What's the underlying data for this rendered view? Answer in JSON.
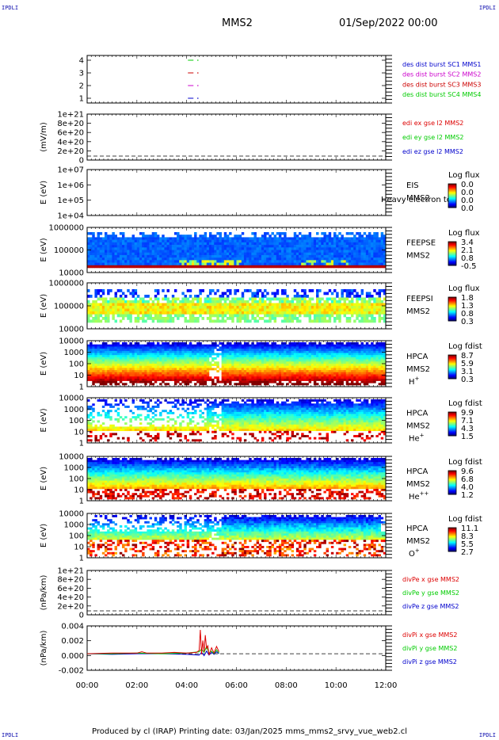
{
  "header": {
    "corner_left_top": "IPDLI",
    "corner_right_top": "IPDLI",
    "corner_left_bottom": "IPDLI",
    "corner_right_bottom": "IPDLI",
    "spacecraft": "MMS2",
    "datetime": "01/Sep/2022 00:00"
  },
  "footer": {
    "text": "Produced by cl (IRAP)   Printing date: 03/Jan/2025   mms_mms2_srvy_vue_web2.cl"
  },
  "colors": {
    "mms1": "#0000cc",
    "mms2": "#cc00cc",
    "mms3": "#cc0000",
    "mms4": "#00cc00",
    "x_comp": "#dd0000",
    "y_comp": "#00cc00",
    "z_comp": "#0000cc"
  },
  "chart_data": [
    {
      "id": "burst",
      "type": "scatter",
      "ylabel": "",
      "yticks": [
        "4",
        "3",
        "2",
        "1"
      ],
      "ylim": [
        0.5,
        4.5
      ],
      "series": [
        {
          "name": "des dist burst SC1 MMS1",
          "color": "#0000cc",
          "y": 1,
          "x": [
            4.05,
            4.45
          ]
        },
        {
          "name": "des dist burst SC2 MMS2",
          "color": "#cc00cc",
          "y": 2,
          "x": [
            4.05,
            4.45
          ]
        },
        {
          "name": "des dist burst SC3 MMS3",
          "color": "#cc0000",
          "y": 3,
          "x": [
            4.05,
            4.45
          ]
        },
        {
          "name": "des dist burst SC4 MMS4",
          "color": "#00cc00",
          "y": 4,
          "x": [
            4.05,
            4.45
          ]
        }
      ]
    },
    {
      "id": "edi",
      "type": "line",
      "ylabel": "(mV/m)",
      "yticks": [
        "1e+21",
        "8e+20",
        "6e+20",
        "4e+20",
        "2e+20",
        "0"
      ],
      "series": [
        {
          "name": "edi ex gse l2 MMS2",
          "color": "#dd0000"
        },
        {
          "name": "edi ey gse l2 MMS2",
          "color": "#00cc00"
        },
        {
          "name": "edi ez gse l2 MMS2",
          "color": "#0000cc"
        }
      ]
    },
    {
      "id": "eis",
      "type": "heatmap",
      "ylabel": "E (eV)",
      "yticks": [
        "1e+07",
        "1e+06",
        "1e+05",
        "1e+04"
      ],
      "instrument": "EIS",
      "overlay_text": "Heavy electron to",
      "spacecraft": "MMS2",
      "colorbar": {
        "title": "Log flux",
        "ticks": [
          "0.0",
          "0.0",
          "0.0",
          "0.0"
        ]
      }
    },
    {
      "id": "feepse",
      "type": "heatmap",
      "ylabel": "E (eV)",
      "yticks": [
        "1000000",
        "100000",
        "10000"
      ],
      "instrument": "FEEPSE",
      "spacecraft": "MMS2",
      "colorbar": {
        "title": "Log flux",
        "ticks": [
          "3.4",
          "2.1",
          "0.8",
          "-0.5"
        ]
      }
    },
    {
      "id": "feepsi",
      "type": "heatmap",
      "ylabel": "E (eV)",
      "yticks": [
        "1000000",
        "100000",
        "10000"
      ],
      "instrument": "FEEPSI",
      "spacecraft": "MMS2",
      "colorbar": {
        "title": "Log flux",
        "ticks": [
          "1.8",
          "1.3",
          "0.8",
          "0.3"
        ]
      }
    },
    {
      "id": "hpca_h",
      "type": "heatmap",
      "ylabel": "E (eV)",
      "yticks": [
        "10000",
        "1000",
        "100",
        "10",
        "1"
      ],
      "instrument": "HPCA",
      "spacecraft": "MMS2",
      "species": "H",
      "species_sup": "+",
      "colorbar": {
        "title": "Log fdist",
        "ticks": [
          "8.7",
          "5.9",
          "3.1",
          "0.3"
        ]
      }
    },
    {
      "id": "hpca_he1",
      "type": "heatmap",
      "ylabel": "E (eV)",
      "yticks": [
        "10000",
        "1000",
        "100",
        "10",
        "1"
      ],
      "instrument": "HPCA",
      "spacecraft": "MMS2",
      "species": "He",
      "species_sup": "+",
      "colorbar": {
        "title": "Log fdist",
        "ticks": [
          "9.9",
          "7.1",
          "4.3",
          "1.5"
        ]
      }
    },
    {
      "id": "hpca_he2",
      "type": "heatmap",
      "ylabel": "E (eV)",
      "yticks": [
        "10000",
        "1000",
        "100",
        "10",
        "1"
      ],
      "instrument": "HPCA",
      "spacecraft": "MMS2",
      "species": "He",
      "species_sup": "++",
      "colorbar": {
        "title": "Log fdist",
        "ticks": [
          "9.6",
          "6.8",
          "4.0",
          "1.2"
        ]
      }
    },
    {
      "id": "hpca_o",
      "type": "heatmap",
      "ylabel": "E (eV)",
      "yticks": [
        "10000",
        "1000",
        "100",
        "10",
        "1"
      ],
      "instrument": "HPCA",
      "spacecraft": "MMS2",
      "species": "O",
      "species_sup": "+",
      "colorbar": {
        "title": "Log fdist",
        "ticks": [
          "11.1",
          "8.3",
          "5.5",
          "2.7"
        ]
      }
    },
    {
      "id": "divpe",
      "type": "line",
      "ylabel": "(nPa/km)",
      "yticks": [
        "1e+21",
        "8e+20",
        "6e+20",
        "4e+20",
        "2e+20",
        "0"
      ],
      "series": [
        {
          "name": "divPe x gse MMS2",
          "color": "#dd0000"
        },
        {
          "name": "divPe y gse MMS2",
          "color": "#00cc00"
        },
        {
          "name": "divPe z gse MMS2",
          "color": "#0000cc"
        }
      ]
    },
    {
      "id": "divpi",
      "type": "line",
      "ylabel": "(nPa/km)",
      "yticks": [
        "0.004",
        "0.002",
        "0.000",
        "-0.002"
      ],
      "ylim": [
        -0.0025,
        0.0042
      ],
      "xticks": [
        "00:00",
        "02:00",
        "04:00",
        "06:00",
        "08:00",
        "10:00",
        "12:00"
      ],
      "xlim": [
        0,
        12
      ],
      "series": [
        {
          "name": "divPi x gse MMS2",
          "color": "#dd0000",
          "x": [
            0.0,
            1.0,
            2.0,
            2.2,
            2.4,
            3.0,
            3.5,
            4.0,
            4.4,
            4.5,
            4.55,
            4.6,
            4.65,
            4.7,
            4.75,
            4.8,
            4.85,
            4.9,
            5.0,
            5.1,
            5.2,
            5.3
          ],
          "y": [
            0.0,
            0.0001,
            0.0001,
            0.0003,
            0.0001,
            0.0001,
            0.0002,
            0.0001,
            0.0002,
            0.0005,
            0.0036,
            -0.0001,
            0.002,
            0.0003,
            0.0028,
            0.0008,
            0.0012,
            -0.0002,
            0.0009,
            0.0001,
            0.0011,
            0.0003
          ]
        },
        {
          "name": "divPi y gse MMS2",
          "color": "#00cc00",
          "x": [
            0.0,
            1.0,
            2.0,
            3.0,
            4.0,
            4.5,
            4.6,
            4.7,
            4.8,
            4.9,
            5.0,
            5.1,
            5.2,
            5.3
          ],
          "y": [
            0.0,
            0.0,
            0.0001,
            0.0,
            0.0001,
            0.0003,
            0.0007,
            0.0002,
            0.0011,
            0.0001,
            0.0004,
            0.0,
            0.0006,
            0.0001
          ]
        },
        {
          "name": "divPi z gse MMS2",
          "color": "#0000cc",
          "x": [
            0.0,
            1.0,
            2.0,
            3.0,
            4.0,
            4.5,
            4.6,
            4.7,
            4.8,
            4.9,
            5.0,
            5.1,
            5.2,
            5.3
          ],
          "y": [
            0.0,
            -0.0001,
            0.0,
            0.0,
            -0.0001,
            -0.0002,
            0.0002,
            -0.0003,
            0.0004,
            -0.0002,
            0.0002,
            -0.0001,
            0.0003,
            0.0
          ]
        }
      ]
    }
  ]
}
